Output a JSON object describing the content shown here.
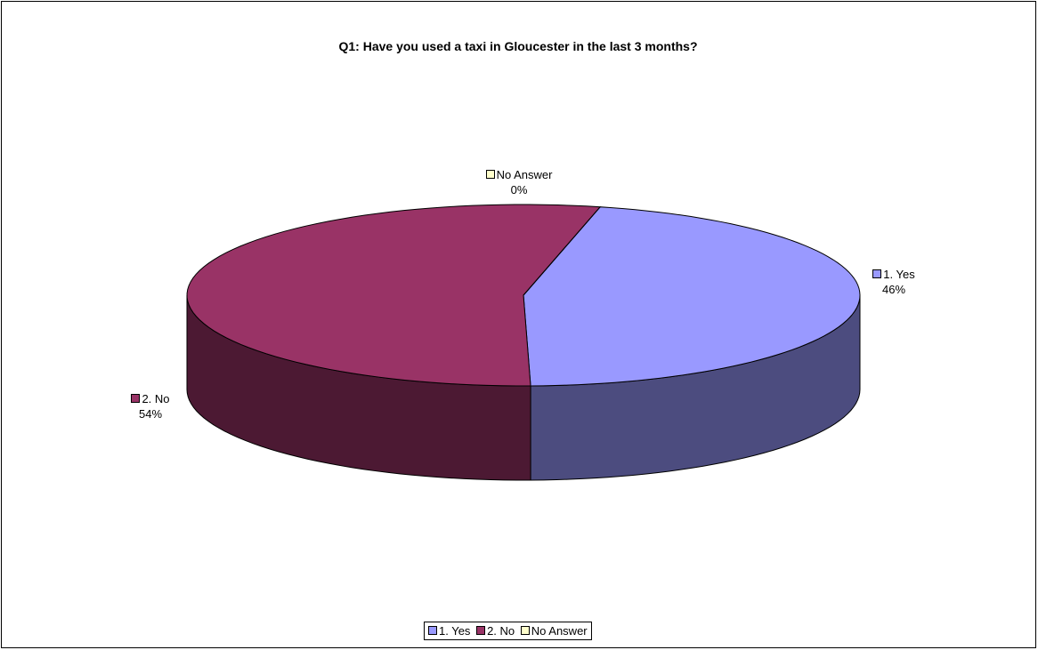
{
  "chart_data": {
    "type": "pie",
    "title": "Q1: Have you used a taxi in Gloucester in the last 3 months?",
    "three_d": true,
    "legend_position": "bottom",
    "categories": [
      "1. Yes",
      "2. No",
      "No Answer"
    ],
    "values": [
      46,
      54,
      0
    ],
    "value_labels": [
      "46%",
      "54%",
      "0%"
    ],
    "colors": {
      "yes_top": "#9999ff",
      "yes_side": "#4c4c7f",
      "no_top": "#993366",
      "no_side": "#4c1933",
      "no_answer": "#ffffcc"
    }
  }
}
